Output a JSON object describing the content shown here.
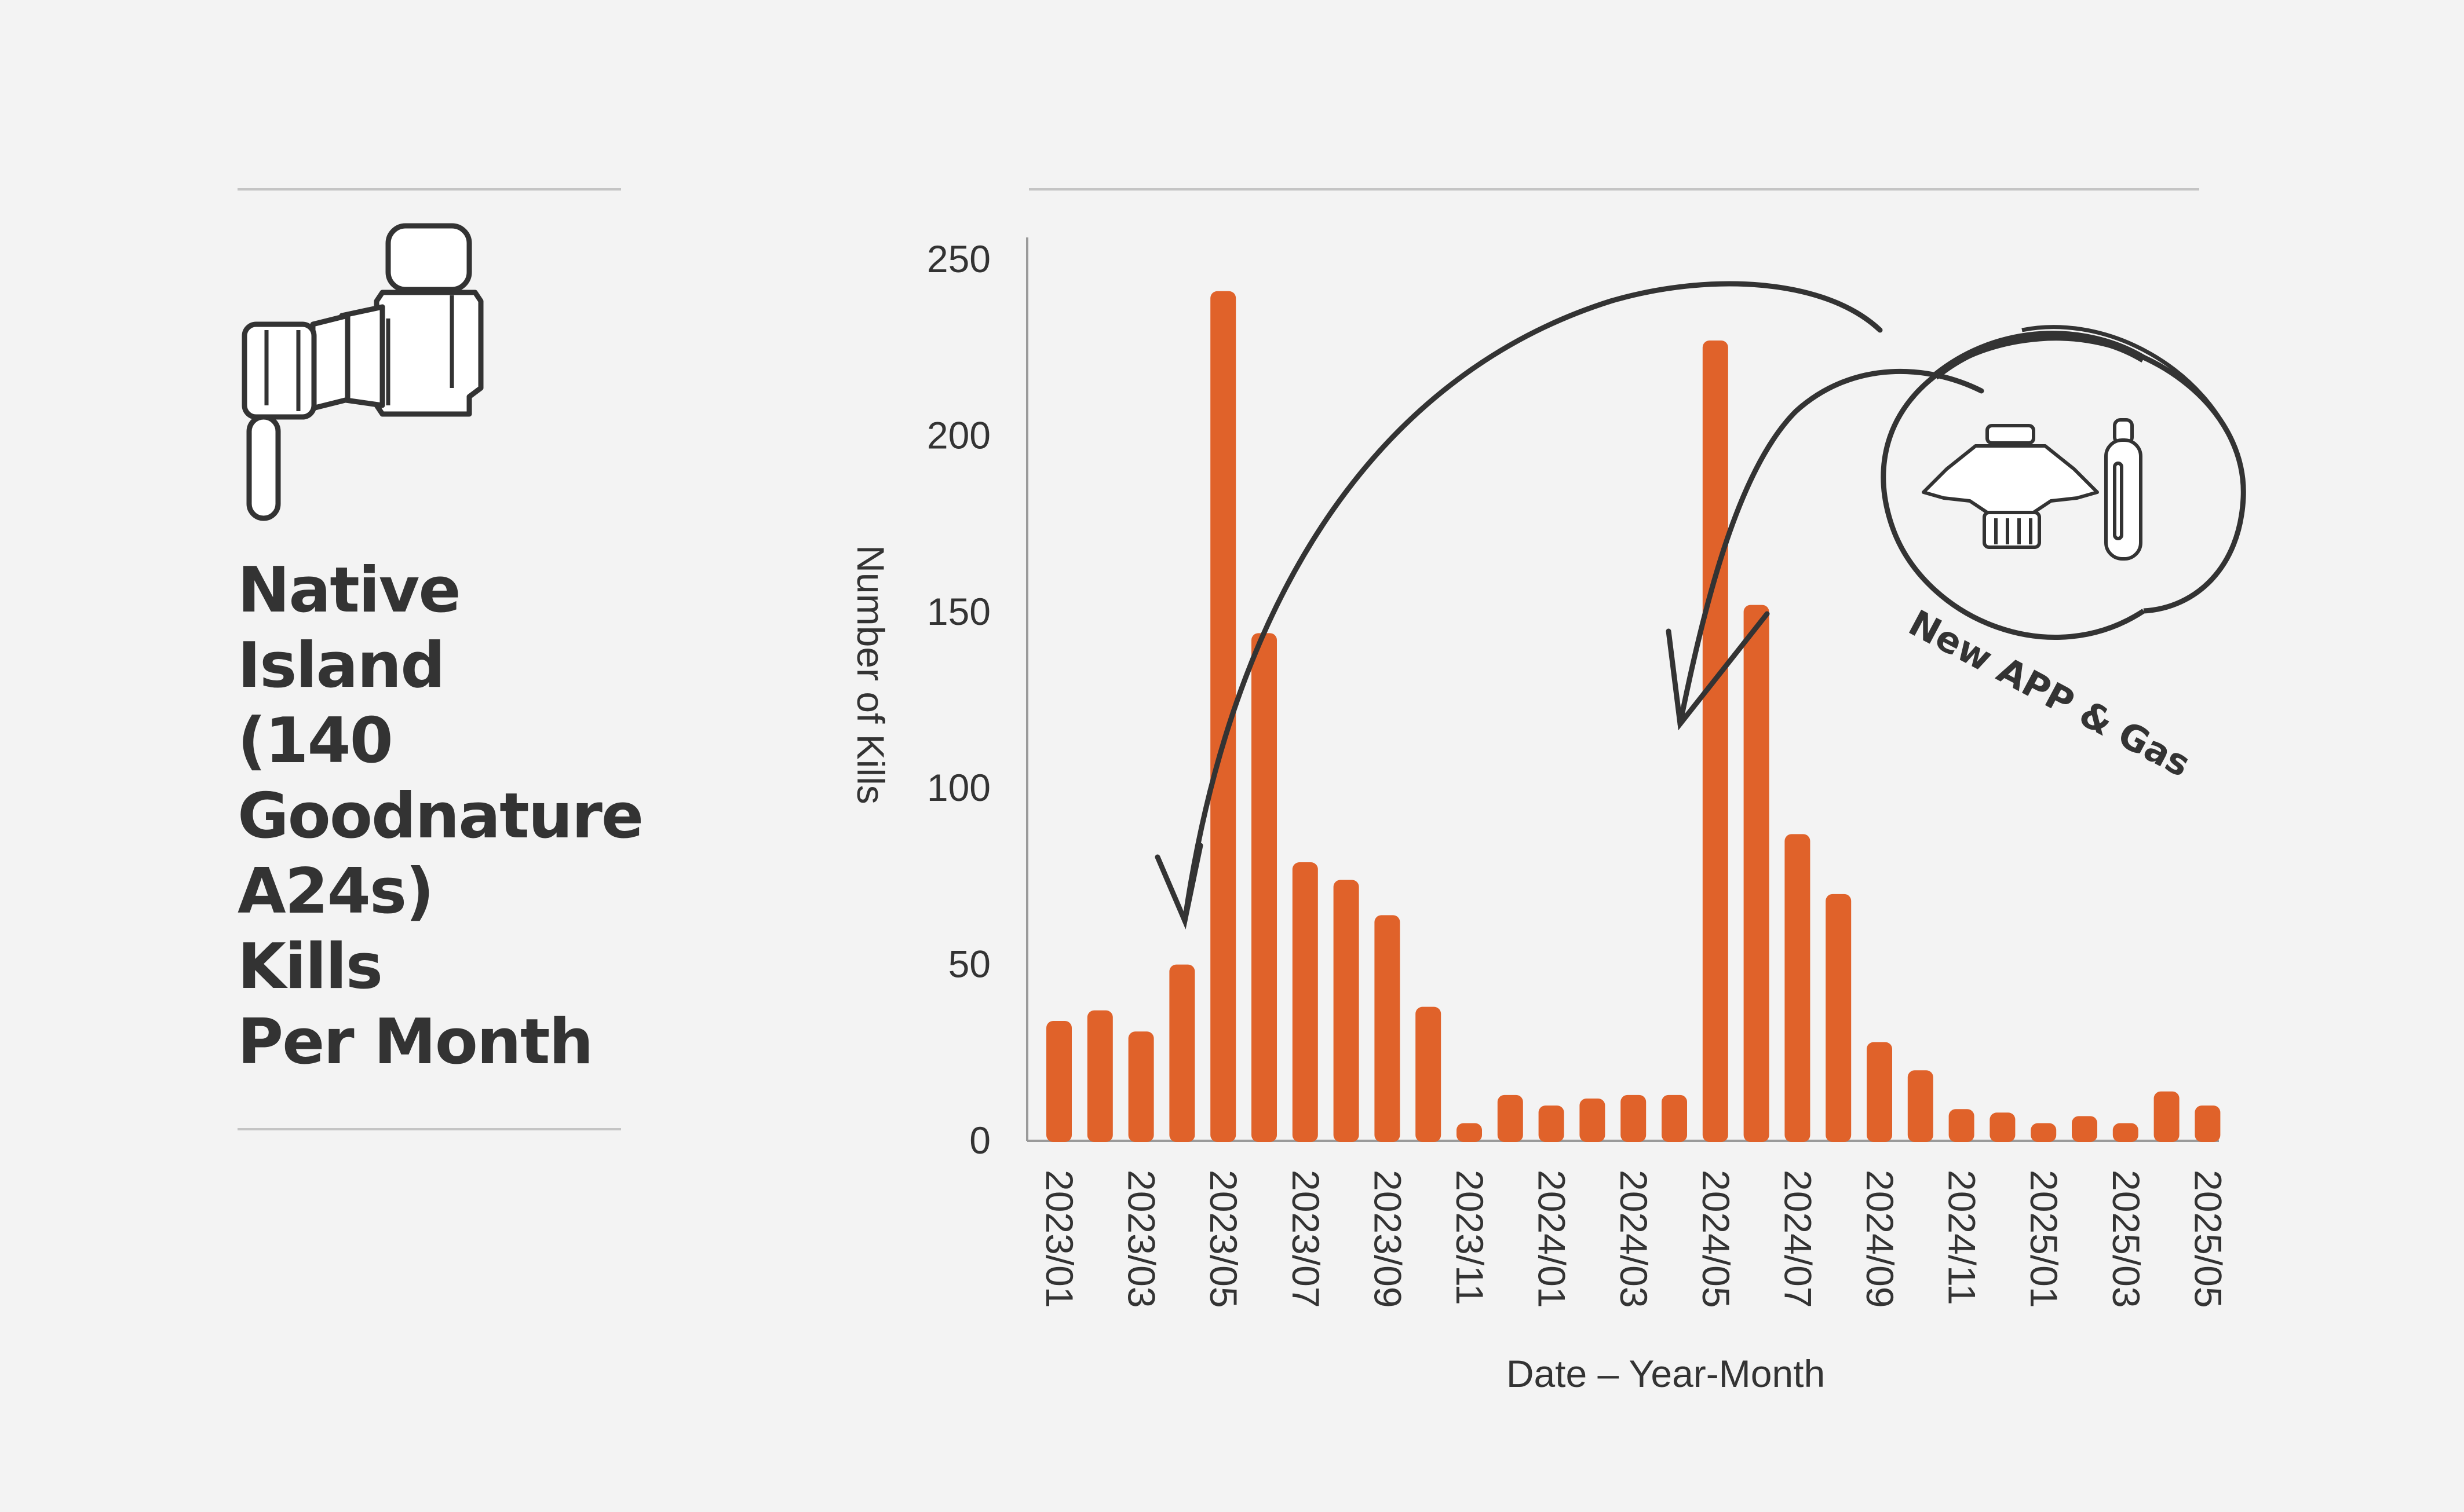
{
  "title": "Native\nIsland\n(140\nGoodnature\nA24s)\nKills\nPer Month",
  "annotation": "New APP & Gas",
  "icons": {
    "trap": "goodnature-a24-trap-icon",
    "lure": "lure-pot-icon",
    "gas": "gas-canister-icon"
  },
  "colors": {
    "bar": "#e0622a",
    "text": "#333333",
    "background": "#f3f3f3"
  },
  "chart_data": {
    "type": "bar",
    "xlabel": "Date – Year-Month",
    "ylabel": "Number of Kills",
    "ylim": [
      0,
      250
    ],
    "yticks": [
      0,
      50,
      100,
      150,
      200,
      250
    ],
    "categories": [
      "2023/01",
      "2023/02",
      "2023/03",
      "2023/04",
      "2023/05",
      "2023/06",
      "2023/07",
      "2023/08",
      "2023/09",
      "2023/10",
      "2023/11",
      "2023/12",
      "2024/01",
      "2024/02",
      "2024/03",
      "2024/04",
      "2024/05",
      "2024/06",
      "2024/07",
      "2024/08",
      "2024/09",
      "2024/10",
      "2024/11",
      "2024/12",
      "2025/01",
      "2025/02",
      "2025/03",
      "2025/04",
      "2025/05"
    ],
    "xtick_labels": [
      "2023/01",
      "2023/03",
      "2023/05",
      "2023/07",
      "2023/09",
      "2023/11",
      "2024/01",
      "2024/03",
      "2024/05",
      "2024/07",
      "2024/09",
      "2024/11",
      "2025/01",
      "2025/03",
      "2025/05"
    ],
    "values": [
      34,
      37,
      31,
      50,
      241,
      144,
      79,
      74,
      64,
      38,
      5,
      13,
      10,
      12,
      13,
      13,
      227,
      152,
      87,
      70,
      28,
      20,
      9,
      8,
      5,
      7,
      5,
      14,
      10
    ],
    "grid": false,
    "legend": "none"
  }
}
